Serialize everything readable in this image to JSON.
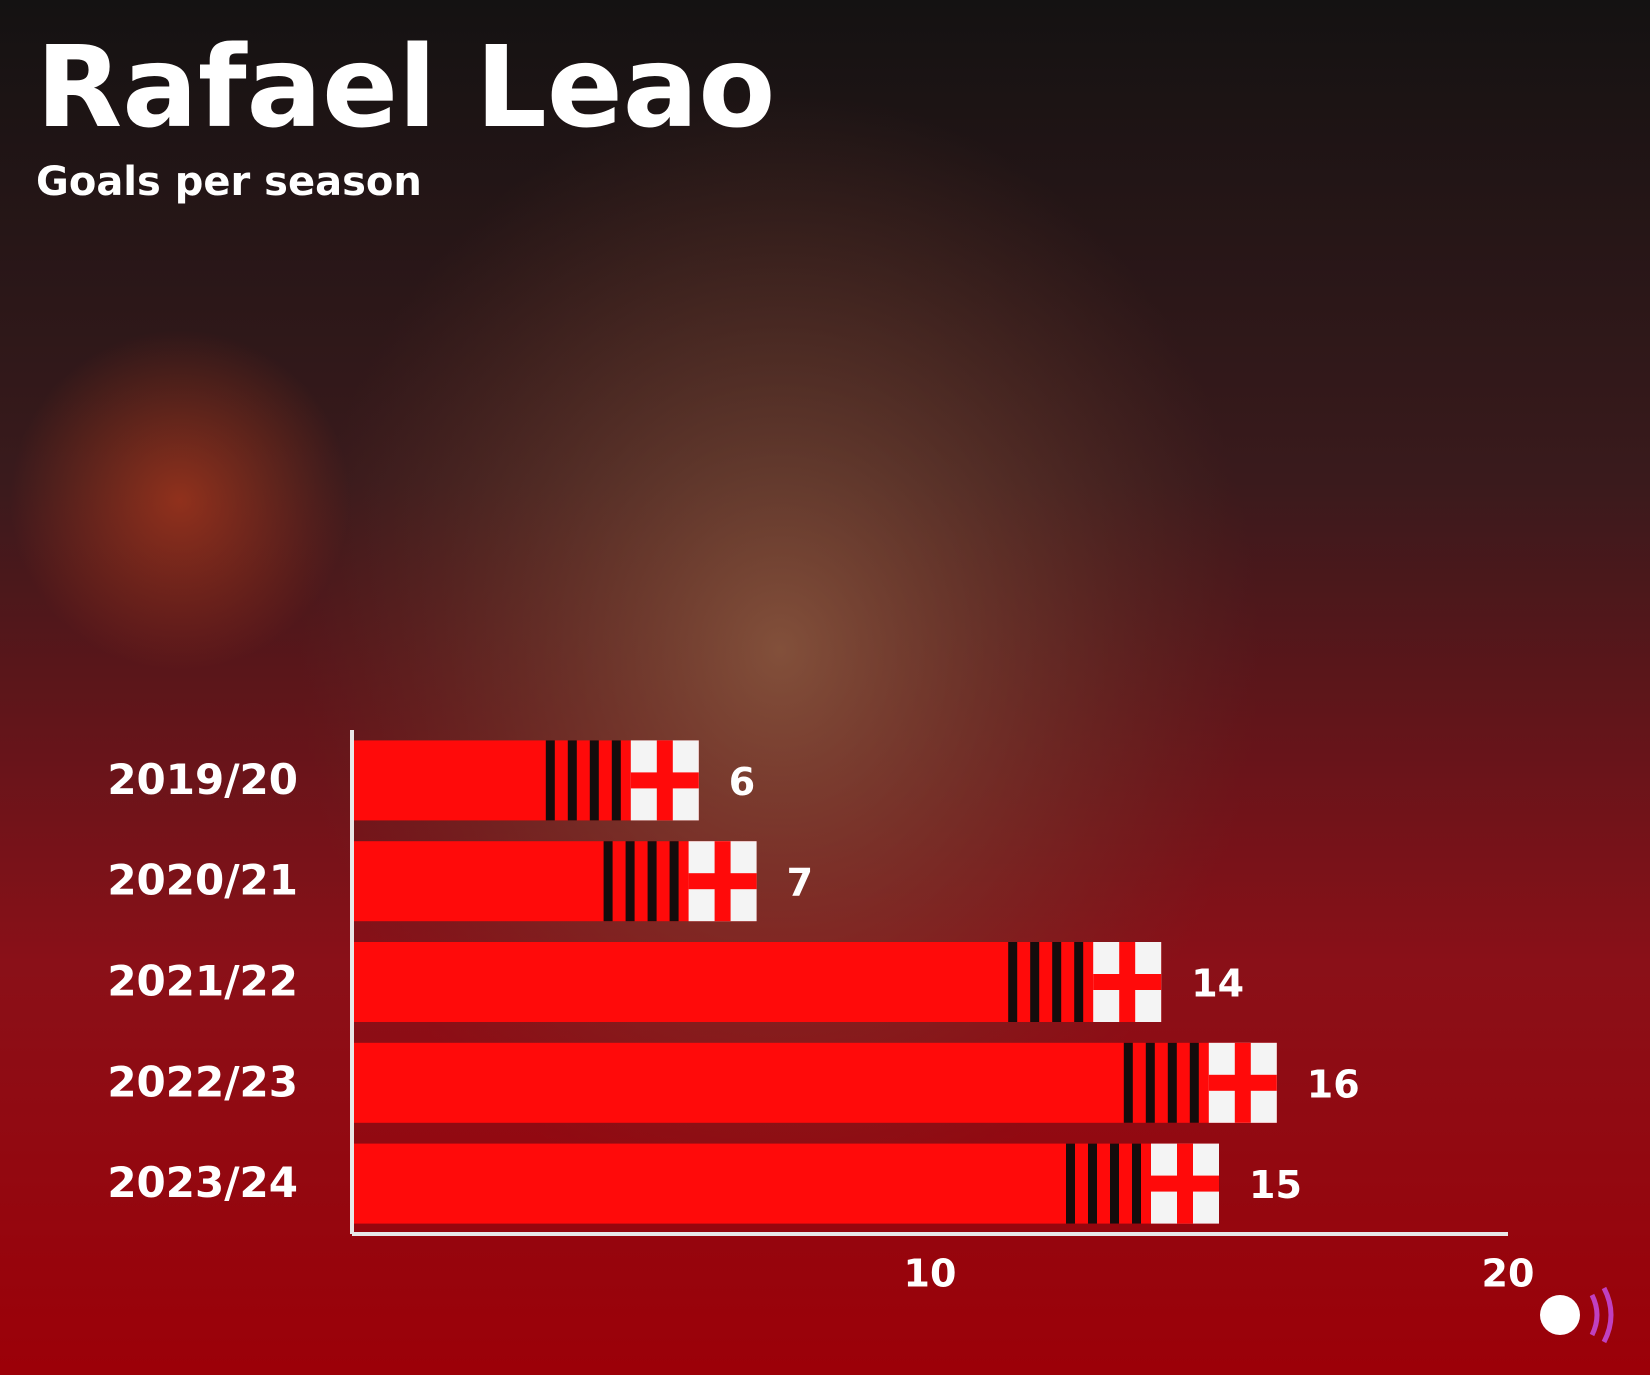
{
  "chart_data": {
    "type": "bar",
    "orientation": "horizontal",
    "title": "Rafael Leao",
    "subtitle": "Goals per season",
    "categories": [
      "2019/20",
      "2020/21",
      "2021/22",
      "2022/23",
      "2023/24"
    ],
    "values": [
      6,
      7,
      14,
      16,
      15
    ],
    "color": "#ff0a0a",
    "xlim": [
      0,
      20
    ],
    "xticks": [
      10,
      20
    ],
    "grid": false
  }
}
